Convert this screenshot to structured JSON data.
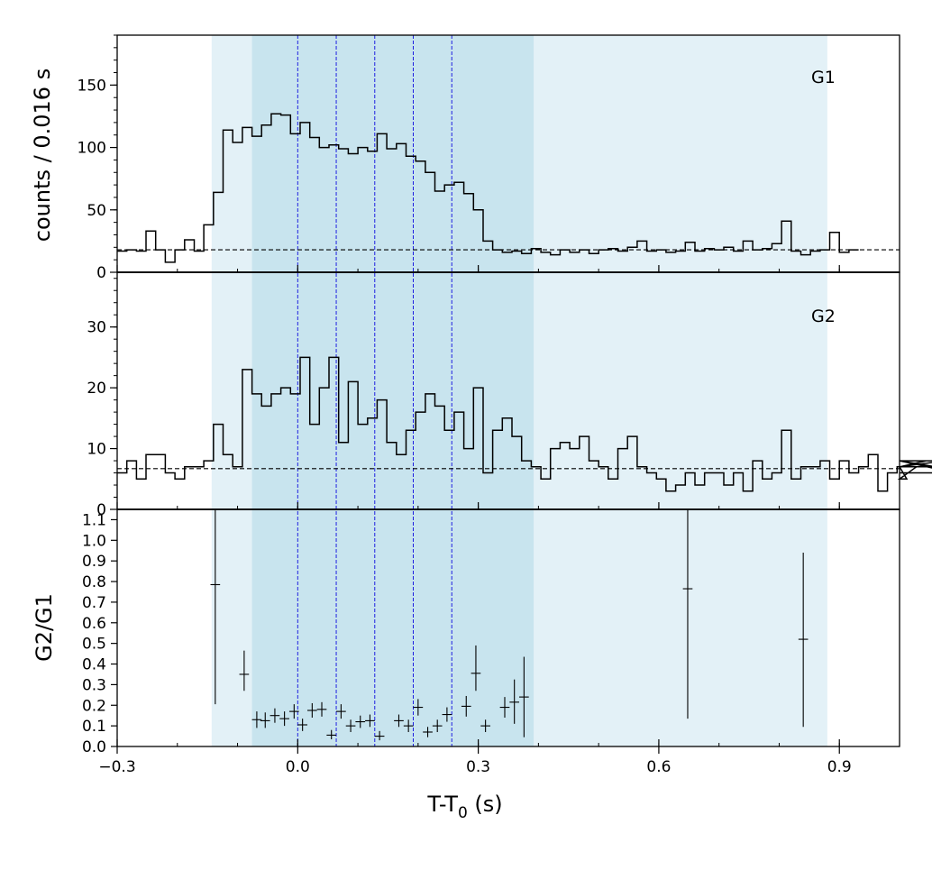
{
  "chart_data": {
    "type": "line",
    "xlabel_main": "T-T",
    "xlabel_sub": "0",
    "xlabel_unit": " (s)",
    "xlim": [
      -0.3,
      1.0
    ],
    "x_tick_values": [
      -0.3,
      0.0,
      0.3,
      0.6,
      0.9
    ],
    "x_tick_labels": [
      "−0.3",
      "0.0",
      "0.3",
      "0.6",
      "0.9"
    ],
    "bin_width": 0.016,
    "light_band": [
      -0.143,
      0.88
    ],
    "dark_band": [
      -0.076,
      0.392
    ],
    "vlines": [
      0.0,
      0.064,
      0.128,
      0.192,
      0.256
    ],
    "panels": [
      {
        "name": "G1",
        "label": "G1",
        "ylabel": "counts /  0.016 s",
        "ylim": [
          0,
          190
        ],
        "y_tick_values": [
          0,
          50,
          100,
          150
        ],
        "y_tick_labels": [
          "0",
          "50",
          "100",
          "150"
        ],
        "y_minor_step": 10,
        "baseline": 18,
        "x_start": -0.3,
        "counts": [
          17,
          18,
          17,
          33,
          18,
          8,
          18,
          26,
          17,
          38,
          64,
          114,
          104,
          116,
          109,
          118,
          127,
          126,
          111,
          120,
          108,
          100,
          102,
          99,
          95,
          100,
          97,
          111,
          99,
          103,
          93,
          89,
          80,
          65,
          70,
          72,
          63,
          50,
          25,
          18,
          16,
          17,
          15,
          19,
          16,
          14,
          18,
          16,
          18,
          15,
          18,
          19,
          17,
          20,
          25,
          17,
          18,
          16,
          17,
          24,
          17,
          19,
          18,
          20,
          17,
          25,
          18,
          19,
          23,
          41,
          17,
          14,
          17,
          18,
          32,
          16,
          18
        ]
      },
      {
        "name": "G2",
        "label": "G2",
        "ylabel": "",
        "ylim": [
          0,
          39
        ],
        "y_tick_values": [
          0,
          10,
          20,
          30
        ],
        "y_tick_labels": [
          "0",
          "10",
          "20",
          "30"
        ],
        "y_minor_step": 2,
        "baseline": 6.7,
        "x_start": -0.3,
        "counts": [
          6,
          8,
          5,
          9,
          9,
          6,
          5,
          7,
          7,
          8,
          14,
          9,
          7,
          23,
          19,
          17,
          19,
          20,
          19,
          25,
          14,
          20,
          25,
          11,
          21,
          14,
          15,
          18,
          11,
          9,
          13,
          16,
          19,
          17,
          13,
          16,
          10,
          20,
          6,
          13,
          15,
          12,
          8,
          7,
          5,
          10,
          11,
          10,
          12,
          8,
          7,
          5,
          10,
          12,
          7,
          6,
          5,
          3,
          4,
          6,
          4,
          6,
          6,
          4,
          6,
          3,
          8,
          5,
          6,
          13,
          5,
          7,
          7,
          8,
          5,
          8,
          6,
          7,
          9,
          3,
          6,
          7,
          5,
          7,
          8,
          7,
          8,
          6
        ]
      },
      {
        "name": "ratio",
        "label": "",
        "ylabel": "G2/G1",
        "ylim": [
          0,
          1.15
        ],
        "y_tick_values": [
          0.0,
          0.1,
          0.2,
          0.3,
          0.4,
          0.5,
          0.6,
          0.7,
          0.8,
          0.9,
          1.0,
          1.1
        ],
        "y_tick_labels": [
          "0.0",
          "0.1",
          "0.2",
          "0.3",
          "0.4",
          "0.5",
          "0.6",
          "0.7",
          "0.8",
          "0.9",
          "1.0",
          "1.1"
        ],
        "points": [
          {
            "x": -0.137,
            "y": 0.785,
            "ylo": 0.205,
            "yhi": 1.15
          },
          {
            "x": -0.089,
            "y": 0.35,
            "ylo": 0.27,
            "yhi": 0.465
          },
          {
            "x": -0.068,
            "y": 0.13,
            "ylo": 0.09,
            "yhi": 0.17
          },
          {
            "x": -0.054,
            "y": 0.125,
            "ylo": 0.09,
            "yhi": 0.165
          },
          {
            "x": -0.038,
            "y": 0.15,
            "ylo": 0.115,
            "yhi": 0.185
          },
          {
            "x": -0.022,
            "y": 0.135,
            "ylo": 0.1,
            "yhi": 0.17
          },
          {
            "x": -0.006,
            "y": 0.17,
            "ylo": 0.135,
            "yhi": 0.205
          },
          {
            "x": 0.008,
            "y": 0.105,
            "ylo": 0.075,
            "yhi": 0.135
          },
          {
            "x": 0.024,
            "y": 0.175,
            "ylo": 0.14,
            "yhi": 0.21
          },
          {
            "x": 0.04,
            "y": 0.18,
            "ylo": 0.145,
            "yhi": 0.215
          },
          {
            "x": 0.056,
            "y": 0.055,
            "ylo": 0.035,
            "yhi": 0.08
          },
          {
            "x": 0.072,
            "y": 0.17,
            "ylo": 0.135,
            "yhi": 0.205
          },
          {
            "x": 0.088,
            "y": 0.1,
            "ylo": 0.07,
            "yhi": 0.13
          },
          {
            "x": 0.104,
            "y": 0.12,
            "ylo": 0.09,
            "yhi": 0.15
          },
          {
            "x": 0.12,
            "y": 0.125,
            "ylo": 0.095,
            "yhi": 0.155
          },
          {
            "x": 0.136,
            "y": 0.05,
            "ylo": 0.03,
            "yhi": 0.075
          },
          {
            "x": 0.168,
            "y": 0.125,
            "ylo": 0.095,
            "yhi": 0.155
          },
          {
            "x": 0.184,
            "y": 0.1,
            "ylo": 0.07,
            "yhi": 0.13
          },
          {
            "x": 0.2,
            "y": 0.19,
            "ylo": 0.15,
            "yhi": 0.23
          },
          {
            "x": 0.216,
            "y": 0.07,
            "ylo": 0.045,
            "yhi": 0.095
          },
          {
            "x": 0.232,
            "y": 0.1,
            "ylo": 0.07,
            "yhi": 0.13
          },
          {
            "x": 0.248,
            "y": 0.155,
            "ylo": 0.12,
            "yhi": 0.19
          },
          {
            "x": 0.28,
            "y": 0.195,
            "ylo": 0.145,
            "yhi": 0.245
          },
          {
            "x": 0.296,
            "y": 0.355,
            "ylo": 0.27,
            "yhi": 0.49
          },
          {
            "x": 0.312,
            "y": 0.1,
            "ylo": 0.07,
            "yhi": 0.13
          },
          {
            "x": 0.344,
            "y": 0.19,
            "ylo": 0.14,
            "yhi": 0.24
          },
          {
            "x": 0.36,
            "y": 0.215,
            "ylo": 0.11,
            "yhi": 0.325
          },
          {
            "x": 0.376,
            "y": 0.24,
            "ylo": 0.045,
            "yhi": 0.435
          },
          {
            "x": 0.648,
            "y": 0.765,
            "ylo": 0.135,
            "yhi": 1.15
          },
          {
            "x": 0.84,
            "y": 0.52,
            "ylo": 0.095,
            "yhi": 0.94
          }
        ]
      }
    ],
    "colors": {
      "light_band": "#e3f1f7",
      "dark_band": "#c8e4ee",
      "vline": "#1f1fe0",
      "data": "#000000",
      "baseline": "#000000"
    }
  }
}
